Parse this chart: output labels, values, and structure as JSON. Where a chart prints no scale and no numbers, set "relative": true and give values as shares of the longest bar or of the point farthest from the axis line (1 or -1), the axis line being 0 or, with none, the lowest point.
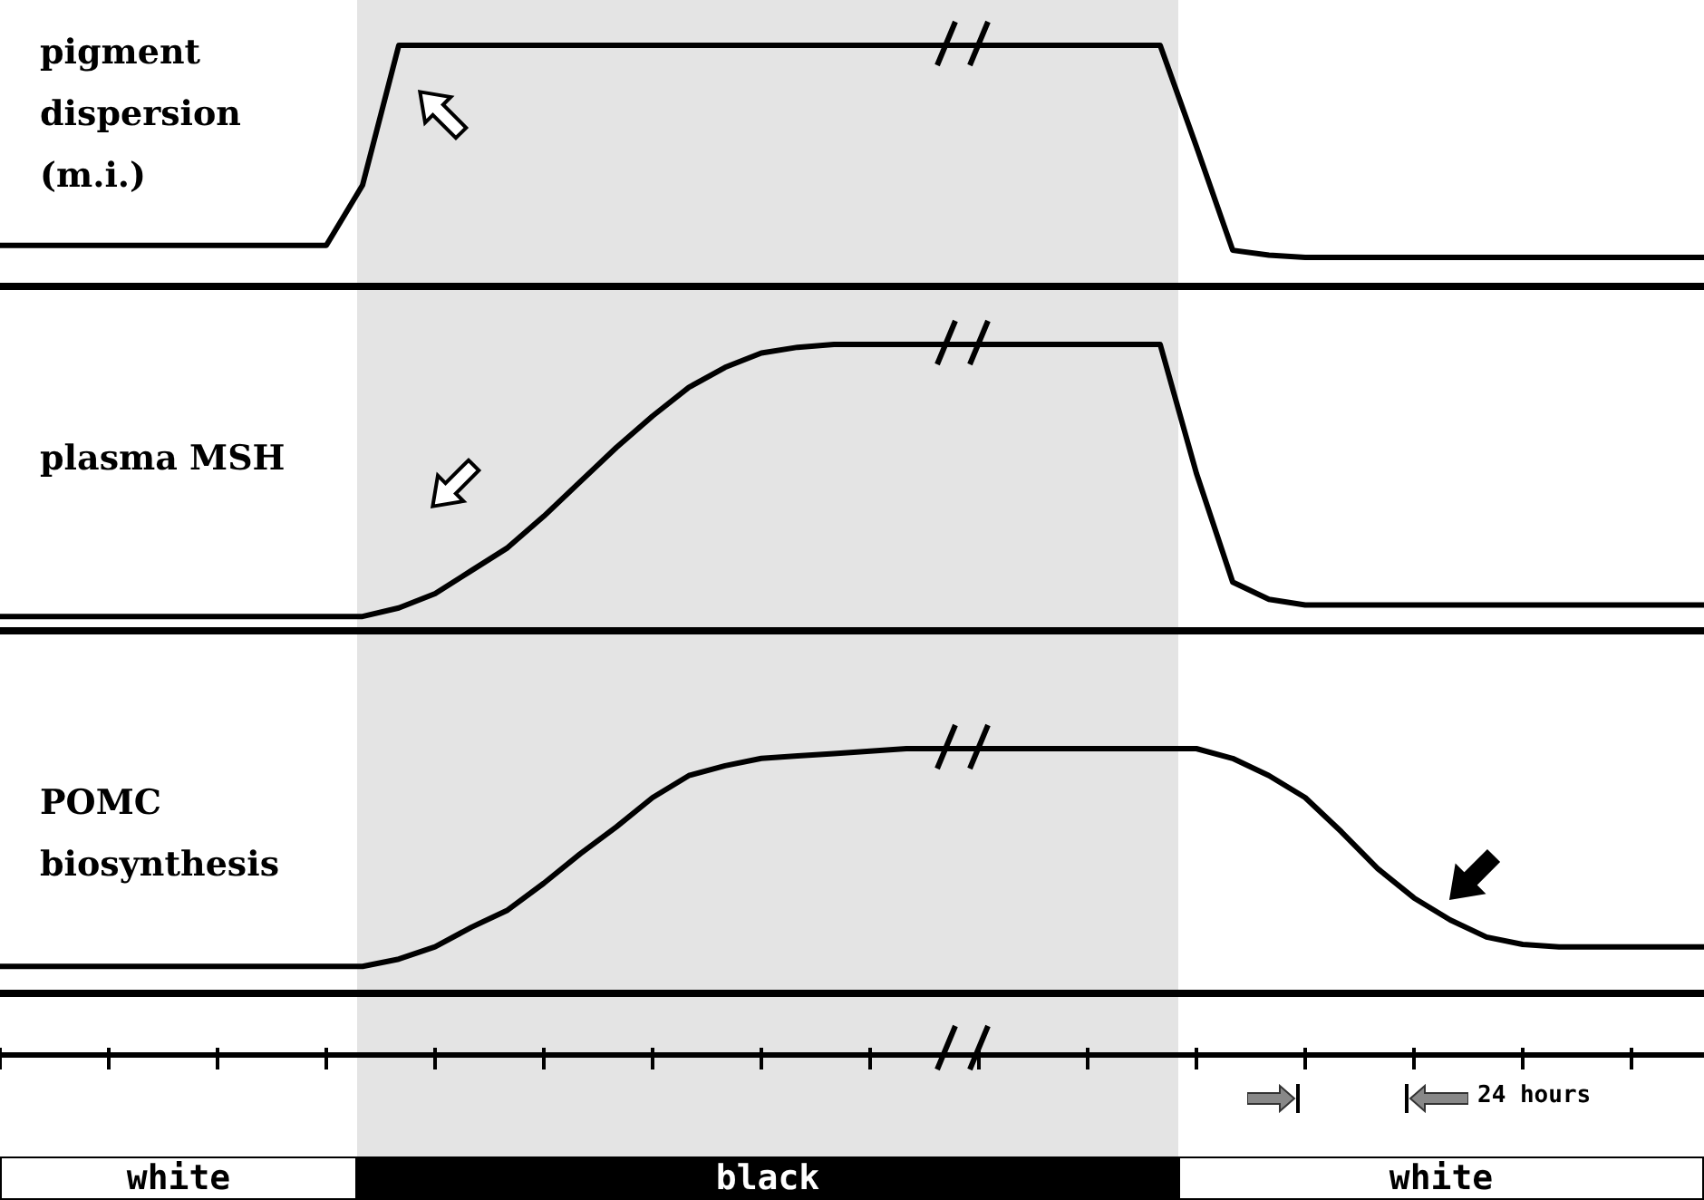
{
  "chart_data": [
    {
      "type": "line",
      "relative": true,
      "marker": "none",
      "tick_labels": false,
      "categories": [
        null,
        null,
        null,
        null,
        null,
        null,
        null,
        null,
        null,
        null,
        null,
        null,
        null,
        null,
        null,
        null,
        null,
        null,
        null,
        null,
        null,
        null,
        null,
        null,
        null,
        null,
        null,
        null,
        null,
        null,
        null,
        null,
        null,
        null,
        null,
        null,
        null,
        null,
        null,
        null,
        null,
        null,
        null,
        null,
        null,
        null,
        null,
        null
      ],
      "series": [
        {
          "name": "pigment dispersion (m.i.)",
          "color": "#000000",
          "values": [
            0.17,
            0.17,
            0.17,
            0.17,
            0.17,
            0.17,
            0.17,
            0.17,
            0.17,
            0.17,
            0.42,
            1,
            1,
            1,
            1,
            1,
            1,
            1,
            1,
            1,
            1,
            1,
            1,
            1,
            1,
            1,
            1,
            1,
            1,
            1,
            1,
            1,
            1,
            0.58,
            0.15,
            0.13,
            0.12,
            0.12,
            0.12,
            0.12,
            0.12,
            0.12,
            0.12,
            0.12,
            0.12,
            0.12,
            0.12,
            0.12
          ]
        }
      ]
    },
    {
      "type": "line",
      "relative": true,
      "marker": "none",
      "tick_labels": false,
      "categories": [
        null,
        null,
        null,
        null,
        null,
        null,
        null,
        null,
        null,
        null,
        null,
        null,
        null,
        null,
        null,
        null,
        null,
        null,
        null,
        null,
        null,
        null,
        null,
        null,
        null,
        null,
        null,
        null,
        null,
        null,
        null,
        null,
        null,
        null,
        null,
        null,
        null,
        null,
        null,
        null,
        null,
        null,
        null,
        null,
        null,
        null,
        null,
        null
      ],
      "series": [
        {
          "name": "plasma MSH",
          "color": "#000000",
          "values": [
            0.05,
            0.05,
            0.05,
            0.05,
            0.05,
            0.05,
            0.05,
            0.05,
            0.05,
            0.05,
            0.05,
            0.08,
            0.13,
            0.21,
            0.29,
            0.4,
            0.52,
            0.64,
            0.75,
            0.85,
            0.92,
            0.97,
            0.99,
            1,
            1,
            1,
            1,
            1,
            1,
            1,
            1,
            1,
            1,
            0.55,
            0.17,
            0.11,
            0.09,
            0.09,
            0.09,
            0.09,
            0.09,
            0.09,
            0.09,
            0.09,
            0.09,
            0.09,
            0.09,
            0.09
          ]
        }
      ]
    },
    {
      "type": "line",
      "relative": true,
      "marker": "none",
      "tick_labels": false,
      "categories": [
        null,
        null,
        null,
        null,
        null,
        null,
        null,
        null,
        null,
        null,
        null,
        null,
        null,
        null,
        null,
        null,
        null,
        null,
        null,
        null,
        null,
        null,
        null,
        null,
        null,
        null,
        null,
        null,
        null,
        null,
        null,
        null,
        null,
        null,
        null,
        null,
        null,
        null,
        null,
        null,
        null,
        null,
        null,
        null,
        null,
        null,
        null,
        null
      ],
      "series": [
        {
          "name": "POMC biosynthesis",
          "color": "#000000",
          "values": [
            0.11,
            0.11,
            0.11,
            0.11,
            0.11,
            0.11,
            0.11,
            0.11,
            0.11,
            0.11,
            0.11,
            0.14,
            0.19,
            0.27,
            0.34,
            0.45,
            0.57,
            0.68,
            0.8,
            0.89,
            0.93,
            0.96,
            0.97,
            0.98,
            0.99,
            1,
            1,
            1,
            1,
            1,
            1,
            1,
            1,
            1,
            0.96,
            0.89,
            0.8,
            0.66,
            0.51,
            0.39,
            0.3,
            0.23,
            0.2,
            0.19,
            0.19,
            0.19,
            0.19,
            0.19
          ]
        }
      ],
      "annotations": [
        "24 hours",
        "white",
        "black",
        "white"
      ]
    }
  ]
}
